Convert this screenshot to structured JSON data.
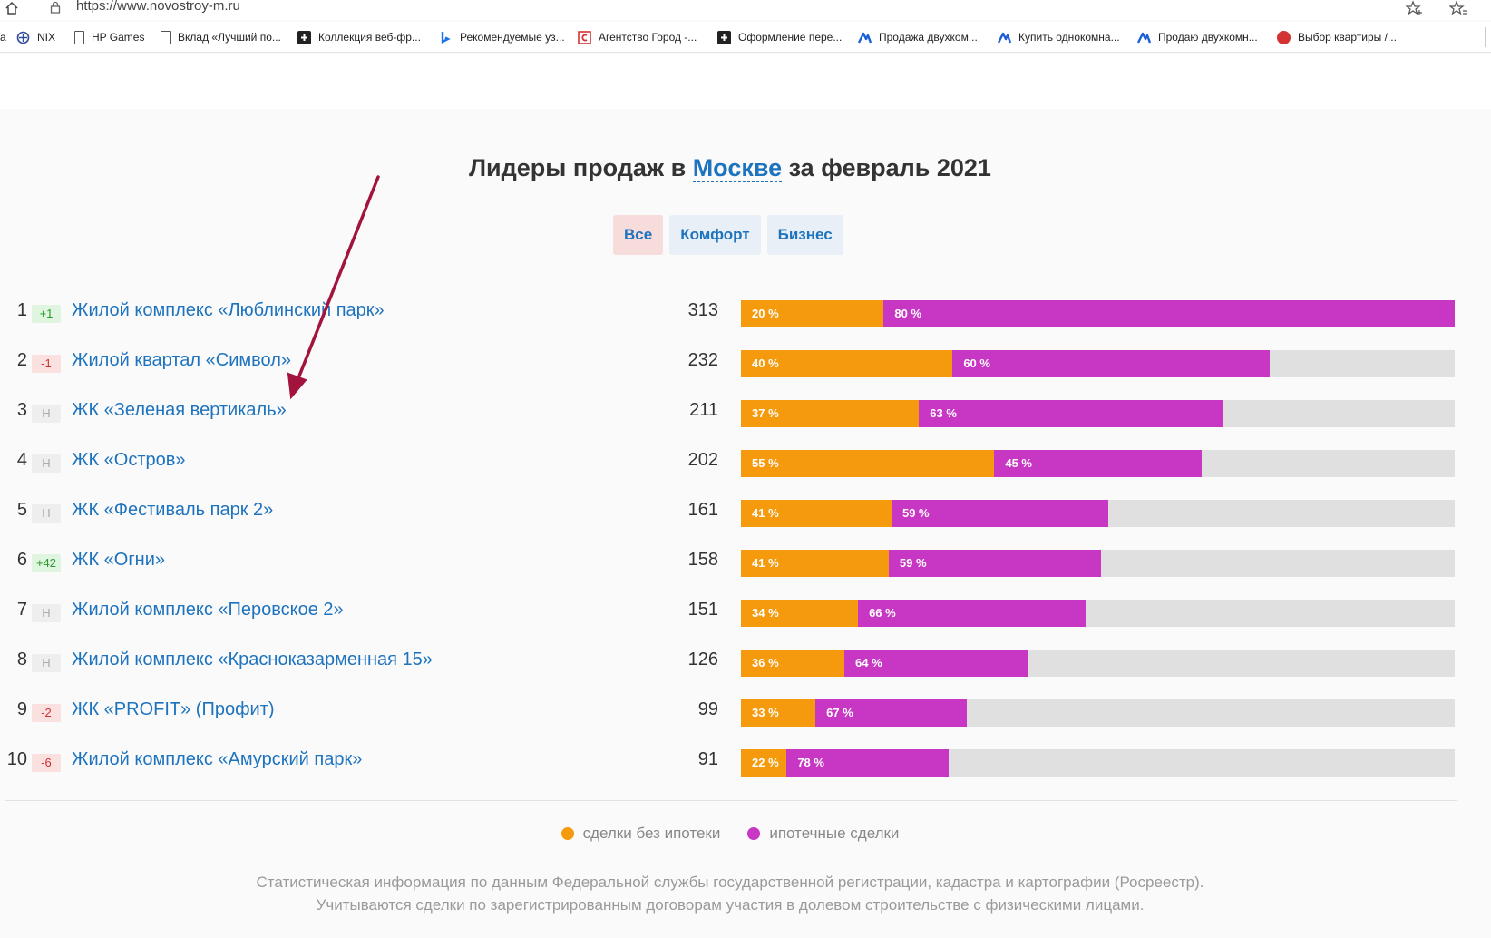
{
  "browser": {
    "url": "https://www.novostroy-m.ru",
    "bookmarks": [
      {
        "label": "NIX",
        "icon": "nix-icon",
        "color": "#2e4b9c"
      },
      {
        "label": "HP Games",
        "icon": "page-icon",
        "color": "#555555"
      },
      {
        "label": "Вклад «Лучший по...",
        "icon": "page-icon",
        "color": "#555555"
      },
      {
        "label": "Коллекция веб-фр...",
        "icon": "collection-icon",
        "color": "#222222"
      },
      {
        "label": "Рекомендуемые уз...",
        "icon": "bing-icon",
        "color": "#1a73e8"
      },
      {
        "label": "Агентство Город -...",
        "icon": "city-agency-icon",
        "color": "#d33333"
      },
      {
        "label": "Оформление пере...",
        "icon": "plus-square-icon",
        "color": "#222222"
      },
      {
        "label": "Продажа двухком...",
        "icon": "realty-icon",
        "color": "#1d5fd8"
      },
      {
        "label": "Купить однокомна...",
        "icon": "realty-icon",
        "color": "#1d5fd8"
      },
      {
        "label": "Продаю двухкомн...",
        "icon": "realty-icon",
        "color": "#1d5fd8"
      },
      {
        "label": "Выбор квартиры /...",
        "icon": "pg-icon",
        "color": "#d33333"
      }
    ]
  },
  "page": {
    "title_prefix": "Лидеры продаж в ",
    "title_city": "Москве",
    "title_suffix": " за февраль 2021",
    "filters": [
      {
        "label": "Все",
        "active": true
      },
      {
        "label": "Комфорт",
        "active": false
      },
      {
        "label": "Бизнес",
        "active": false
      }
    ],
    "colors": {
      "cash": "#f59a0c",
      "mortgage": "#c737c4",
      "link": "#1e73be"
    },
    "max_deals": 313,
    "rows": [
      {
        "rank": "1",
        "change": "+1",
        "change_type": "up",
        "name": "Жилой комплекс «Люблинский парк»",
        "deals": 313,
        "cash_pct": 20,
        "mort_pct": 80,
        "cash_label": "20 %",
        "mort_label": "80 %"
      },
      {
        "rank": "2",
        "change": "-1",
        "change_type": "down",
        "name": "Жилой квартал «Символ»",
        "deals": 232,
        "cash_pct": 40,
        "mort_pct": 60,
        "cash_label": "40 %",
        "mort_label": "60 %"
      },
      {
        "rank": "3",
        "change": "Н",
        "change_type": "new",
        "name": "ЖК «Зеленая вертикаль»",
        "deals": 211,
        "cash_pct": 37,
        "mort_pct": 63,
        "cash_label": "37 %",
        "mort_label": "63 %"
      },
      {
        "rank": "4",
        "change": "Н",
        "change_type": "new",
        "name": "ЖК «Остров»",
        "deals": 202,
        "cash_pct": 55,
        "mort_pct": 45,
        "cash_label": "55 %",
        "mort_label": "45 %"
      },
      {
        "rank": "5",
        "change": "Н",
        "change_type": "new",
        "name": "ЖК «Фестиваль парк 2»",
        "deals": 161,
        "cash_pct": 41,
        "mort_pct": 59,
        "cash_label": "41 %",
        "mort_label": "59 %"
      },
      {
        "rank": "6",
        "change": "+42",
        "change_type": "up",
        "name": "ЖК «Огни»",
        "deals": 158,
        "cash_pct": 41,
        "mort_pct": 59,
        "cash_label": "41 %",
        "mort_label": "59 %"
      },
      {
        "rank": "7",
        "change": "Н",
        "change_type": "new",
        "name": "Жилой комплекс «Перовское 2»",
        "deals": 151,
        "cash_pct": 34,
        "mort_pct": 66,
        "cash_label": "34 %",
        "mort_label": "66 %"
      },
      {
        "rank": "8",
        "change": "Н",
        "change_type": "new",
        "name": "Жилой комплекс «Красноказарменная 15»",
        "deals": 126,
        "cash_pct": 36,
        "mort_pct": 64,
        "cash_label": "36 %",
        "mort_label": "64 %"
      },
      {
        "rank": "9",
        "change": "-2",
        "change_type": "down",
        "name": "ЖК «PROFIT» (Профит)",
        "deals": 99,
        "cash_pct": 33,
        "mort_pct": 67,
        "cash_label": "33 %",
        "mort_label": "67 %"
      },
      {
        "rank": "10",
        "change": "-6",
        "change_type": "down",
        "name": "Жилой комплекс «Амурский парк»",
        "deals": 91,
        "cash_pct": 22,
        "mort_pct": 78,
        "cash_label": "22 %",
        "mort_label": "78 %"
      }
    ],
    "legend": {
      "cash": "сделки без ипотеки",
      "mortgage": "ипотечные сделки"
    },
    "footnote_line1": "Статистическая информация по данным Федеральной службы государственной регистрации, кадастра и картографии (Росреестр).",
    "footnote_line2": "Учитываются сделки по зарегистрированным договорам участия в долевом строительстве с физическими лицами."
  }
}
